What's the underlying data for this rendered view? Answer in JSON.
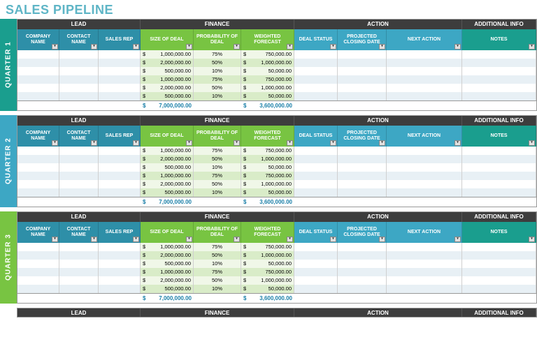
{
  "title": "SALES PIPELINE",
  "groups": {
    "lead": "LEAD",
    "finance": "FINANCE",
    "action": "ACTION",
    "info": "ADDITIONAL INFO"
  },
  "columns": {
    "company": "COMPANY NAME",
    "contact": "CONTACT NAME",
    "rep": "SALES REP",
    "size": "SIZE OF DEAL",
    "prob": "PROBABILITY OF DEAL",
    "fcst": "WEIGHTED FORECAST",
    "status": "DEAL STATUS",
    "close": "PROJECTED CLOSING DATE",
    "next": "NEXT ACTION",
    "notes": "NOTES"
  },
  "colors": {
    "title": "#5eb5c6",
    "group_bg": "#3d3d3d",
    "lead_header": "#2e8fa8",
    "finance_header": "#78c442",
    "action_header": "#3da7c4",
    "info_header": "#1a9e8e",
    "q1_tab": "#1a9e8e",
    "q2_tab": "#3da7c4",
    "q3_tab": "#78c442",
    "row_odd": "#e8f0f5",
    "fin_row_even": "#f0f7e8",
    "fin_row_odd": "#d9ecc8",
    "total_text": "#1a7fa8"
  },
  "quarters": [
    {
      "label": "QUARTER 1",
      "tab_class": "q1-tab",
      "rows": [
        {
          "size": "1,000,000.00",
          "prob": "75%",
          "fcst": "750,000.00"
        },
        {
          "size": "2,000,000.00",
          "prob": "50%",
          "fcst": "1,000,000.00"
        },
        {
          "size": "500,000.00",
          "prob": "10%",
          "fcst": "50,000.00"
        },
        {
          "size": "1,000,000.00",
          "prob": "75%",
          "fcst": "750,000.00"
        },
        {
          "size": "2,000,000.00",
          "prob": "50%",
          "fcst": "1,000,000.00"
        },
        {
          "size": "500,000.00",
          "prob": "10%",
          "fcst": "50,000.00"
        }
      ],
      "totals": {
        "size": "7,000,000.00",
        "fcst": "3,600,000.00"
      }
    },
    {
      "label": "QUARTER 2",
      "tab_class": "q2-tab",
      "rows": [
        {
          "size": "1,000,000.00",
          "prob": "75%",
          "fcst": "750,000.00"
        },
        {
          "size": "2,000,000.00",
          "prob": "50%",
          "fcst": "1,000,000.00"
        },
        {
          "size": "500,000.00",
          "prob": "10%",
          "fcst": "50,000.00"
        },
        {
          "size": "1,000,000.00",
          "prob": "75%",
          "fcst": "750,000.00"
        },
        {
          "size": "2,000,000.00",
          "prob": "50%",
          "fcst": "1,000,000.00"
        },
        {
          "size": "500,000.00",
          "prob": "10%",
          "fcst": "50,000.00"
        }
      ],
      "totals": {
        "size": "7,000,000.00",
        "fcst": "3,600,000.00"
      }
    },
    {
      "label": "QUARTER 3",
      "tab_class": "q3-tab",
      "rows": [
        {
          "size": "1,000,000.00",
          "prob": "75%",
          "fcst": "750,000.00"
        },
        {
          "size": "2,000,000.00",
          "prob": "50%",
          "fcst": "1,000,000.00"
        },
        {
          "size": "500,000.00",
          "prob": "10%",
          "fcst": "50,000.00"
        },
        {
          "size": "1,000,000.00",
          "prob": "75%",
          "fcst": "750,000.00"
        },
        {
          "size": "2,000,000.00",
          "prob": "50%",
          "fcst": "1,000,000.00"
        },
        {
          "size": "500,000.00",
          "prob": "10%",
          "fcst": "50,000.00"
        }
      ],
      "totals": {
        "size": "7,000,000.00",
        "fcst": "3,600,000.00"
      }
    }
  ]
}
